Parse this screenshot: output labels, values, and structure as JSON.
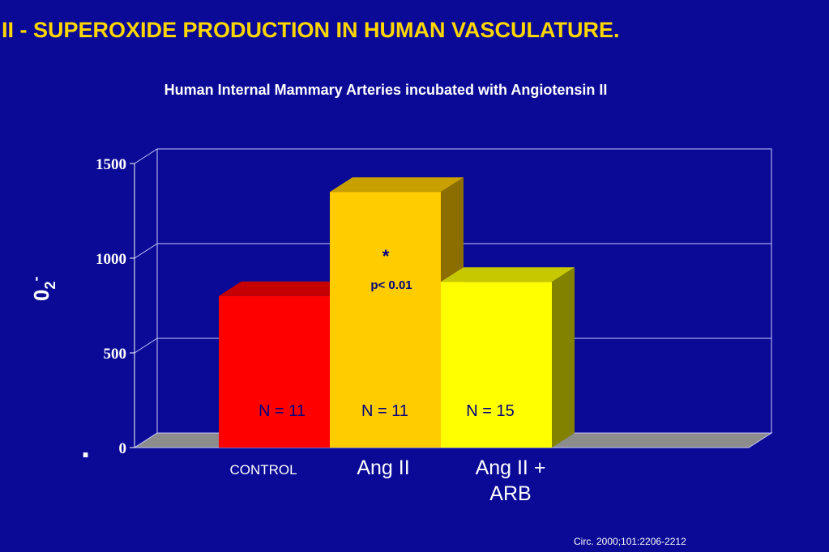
{
  "slide": {
    "title": "II - SUPEROXIDE PRODUCTION IN HUMAN VASCULATURE.",
    "subtitle": "Human Internal Mammary Arteries incubated with Angiotensin II",
    "citation": "Circ. 2000;101:2206-2212"
  },
  "chart_data": {
    "type": "bar",
    "title": "Human Internal Mammary Arteries incubated with Angiotensin II",
    "ylabel": "0",
    "ylabel_sub": "2",
    "ylabel_sup": "-",
    "ylim": [
      0,
      1500
    ],
    "yticks": [
      0,
      500,
      1000,
      1500
    ],
    "grid": true,
    "categories": [
      "CONTROL",
      "Ang II",
      "Ang II + ARB"
    ],
    "category_lines": [
      [
        "CONTROL"
      ],
      [
        "Ang II"
      ],
      [
        "Ang II +",
        "ARB"
      ]
    ],
    "values": [
      800,
      1350,
      875
    ],
    "n_labels": [
      "N = 11",
      "N = 11",
      "N = 15"
    ],
    "annotations": {
      "star": "*",
      "pvalue": "p< 0.01"
    },
    "bar_colors": [
      {
        "front": "#ff0000",
        "top": "#c40000",
        "side": "#8c0000"
      },
      {
        "front": "#ffcc00",
        "top": "#c8a000",
        "side": "#8c6e00"
      },
      {
        "front": "#ffff00",
        "top": "#c8c800",
        "side": "#828200"
      }
    ],
    "stray_mark": "."
  }
}
